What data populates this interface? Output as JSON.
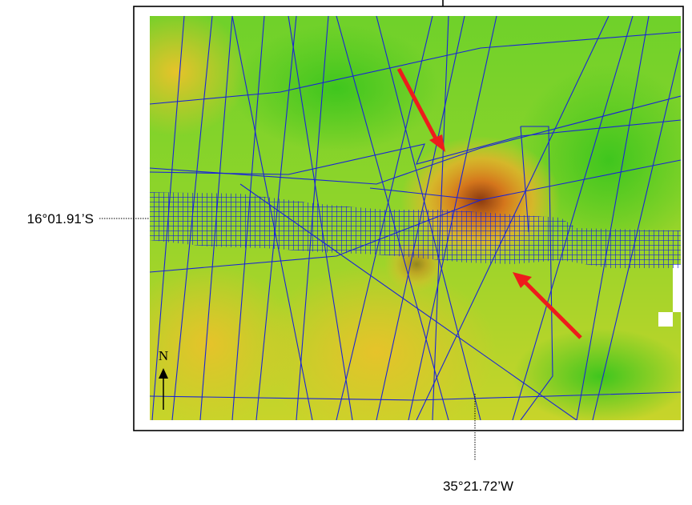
{
  "labels": {
    "latitude": "16°01.91’S",
    "longitude": "35°21.72’W",
    "north": "N"
  }
}
